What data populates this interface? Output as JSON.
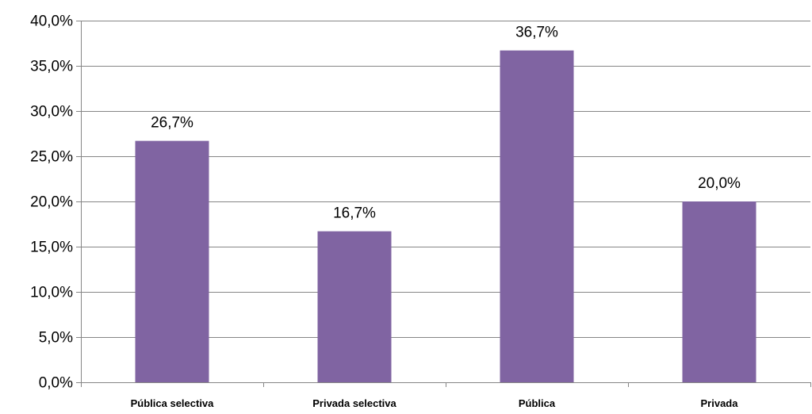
{
  "chart_data": {
    "type": "bar",
    "categories": [
      "Pública selectiva",
      "Privada selectiva",
      "Pública",
      "Privada"
    ],
    "values": [
      26.7,
      16.7,
      36.7,
      20.0
    ],
    "data_labels": [
      "26,7%",
      "16,7%",
      "36,7%",
      "20,0%"
    ],
    "title": "",
    "xlabel": "",
    "ylabel": "",
    "ylim": [
      0,
      40
    ],
    "yticks": [
      0,
      5,
      10,
      15,
      20,
      25,
      30,
      35,
      40
    ],
    "ytick_labels": [
      "0,0%",
      "5,0%",
      "10,0%",
      "15,0%",
      "20,0%",
      "25,0%",
      "30,0%",
      "35,0%",
      "40,0%"
    ],
    "grid": true,
    "legend": "none",
    "bar_color": "#8064a2",
    "gridline_color": "#868686"
  }
}
